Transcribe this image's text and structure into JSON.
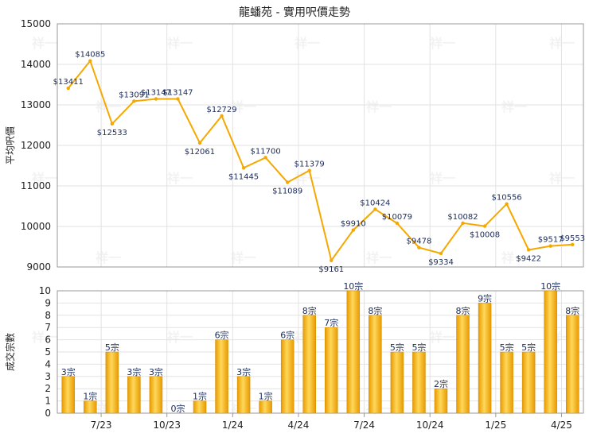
{
  "chart_data": [
    {
      "type": "line",
      "title": "龍蟠苑 - 實用呎價走勢",
      "ylabel": "平均呎價",
      "ylim": [
        9000,
        15000
      ],
      "yticks": [
        9000,
        10000,
        11000,
        12000,
        13000,
        14000,
        15000
      ],
      "grid": true,
      "color": "#f5a800",
      "values": [
        13411,
        14085,
        12533,
        13091,
        13147,
        13147,
        12061,
        12729,
        11445,
        11700,
        11089,
        11379,
        9161,
        9910,
        10424,
        10079,
        9478,
        9334,
        10082,
        10008,
        10556,
        9422,
        9517,
        9553
      ],
      "value_labels": [
        "$13411",
        "$14085",
        "$12533",
        "$13091",
        "$13147",
        "$13147",
        "$12061",
        "$12729",
        "$11445",
        "$11700",
        "$11089",
        "$11379",
        "$9161",
        "$9910",
        "$10424",
        "$10079",
        "$9478",
        "$9334",
        "$10082",
        "$10008",
        "$10556",
        "$9422",
        "$9517",
        "$9553"
      ]
    },
    {
      "type": "bar",
      "ylabel": "成交宗數",
      "ylim": [
        0,
        10
      ],
      "yticks": [
        0,
        1,
        2,
        3,
        4,
        5,
        6,
        7,
        8,
        9,
        10
      ],
      "grid": true,
      "color": "#f5a800",
      "values": [
        3,
        1,
        5,
        3,
        3,
        0,
        1,
        6,
        3,
        1,
        6,
        8,
        7,
        10,
        8,
        5,
        5,
        2,
        8,
        9,
        5,
        5,
        10,
        8
      ],
      "value_labels": [
        "3宗",
        "1宗",
        "5宗",
        "3宗",
        "3宗",
        "0宗",
        "1宗",
        "6宗",
        "3宗",
        "1宗",
        "6宗",
        "8宗",
        "7宗",
        "10宗",
        "8宗",
        "5宗",
        "5宗",
        "2宗",
        "8宗",
        "9宗",
        "5宗",
        "5宗",
        "10宗",
        "8宗"
      ],
      "x_tick_labels": [
        {
          "after_index": 1,
          "label": "7/23"
        },
        {
          "after_index": 4,
          "label": "10/23"
        },
        {
          "after_index": 7,
          "label": "1/24"
        },
        {
          "after_index": 10,
          "label": "4/24"
        },
        {
          "after_index": 13,
          "label": "7/24"
        },
        {
          "after_index": 16,
          "label": "10/24"
        },
        {
          "after_index": 19,
          "label": "1/25"
        },
        {
          "after_index": 22,
          "label": "4/25"
        }
      ]
    }
  ],
  "watermark": "祥一"
}
